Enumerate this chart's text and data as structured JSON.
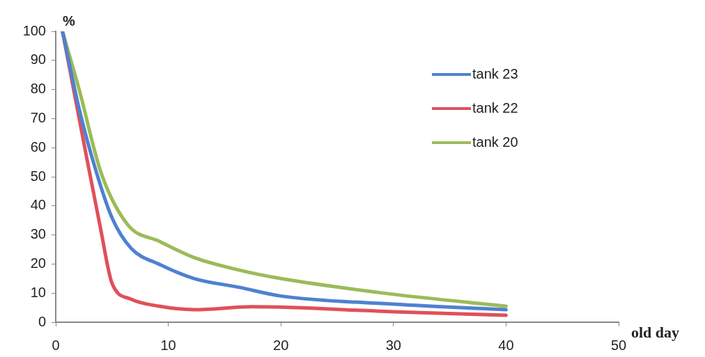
{
  "chart_data": {
    "type": "line",
    "xlabel": "old day",
    "ylabel": "%",
    "xlim": [
      0,
      50
    ],
    "xticks": [
      0,
      10,
      20,
      30,
      40,
      50
    ],
    "ylim": [
      0,
      100
    ],
    "yticks": [
      0,
      10,
      20,
      30,
      40,
      50,
      60,
      70,
      80,
      90,
      100
    ],
    "grid": false,
    "legend": "top right",
    "marker": "none",
    "line_style": "solid",
    "series": [
      {
        "name": "tank 23",
        "color": "#4f81d0",
        "x": [
          0.6,
          2.1,
          3.6,
          5,
          6.7,
          9.2,
          12.3,
          16.3,
          20,
          30,
          40
        ],
        "values": [
          100,
          73,
          51.7,
          35.9,
          25.4,
          19.9,
          15,
          12,
          9,
          6.2,
          4.3
        ]
      },
      {
        "name": "tank 22",
        "color": "#e0505a",
        "x": [
          0.6,
          2.4,
          4,
          5,
          6.7,
          9.2,
          12.3,
          17.4,
          30,
          40
        ],
        "values": [
          100,
          63.6,
          31.8,
          13.4,
          7.9,
          5.5,
          4.3,
          5.3,
          3.6,
          2.4
        ]
      },
      {
        "name": "tank 20",
        "color": "#9bbb59",
        "x": [
          0.6,
          2.1,
          4,
          6.4,
          9.2,
          12.3,
          16.3,
          20,
          30,
          40
        ],
        "values": [
          100,
          79.7,
          51.7,
          33.5,
          27.8,
          22.2,
          17.9,
          15,
          9.6,
          5.5
        ]
      }
    ]
  }
}
